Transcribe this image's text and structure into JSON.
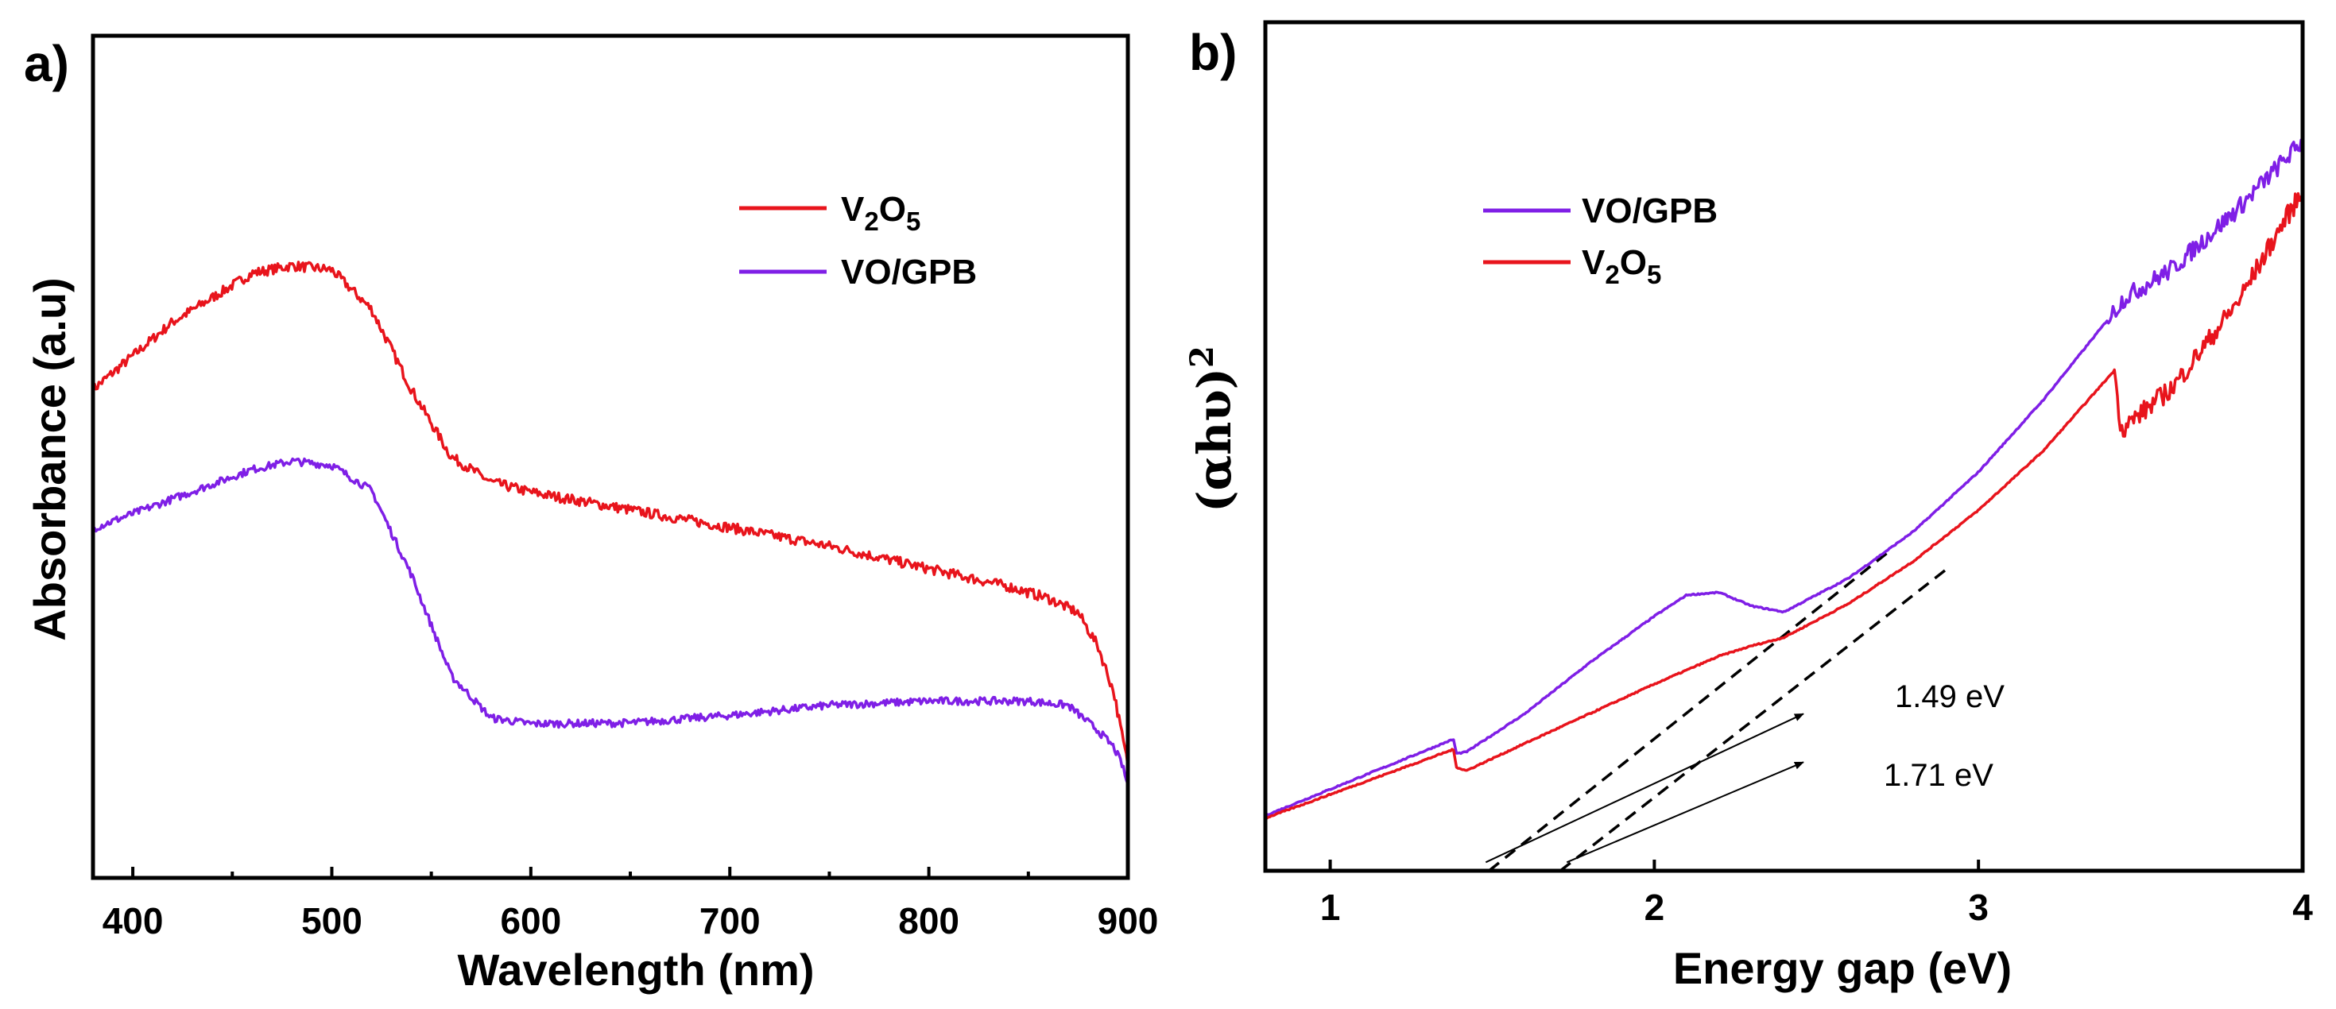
{
  "colors": {
    "red": "#e8141c",
    "purple": "#7f1fe6",
    "axis": "#000000"
  },
  "chart_data": [
    {
      "panel": "a)",
      "type": "line",
      "xlabel": "Wavelength (nm)",
      "ylabel": "Absorbance (a.u)",
      "xlim": [
        380,
        900
      ],
      "ylim": [
        0,
        100
      ],
      "xticks": [
        "400",
        "500",
        "600",
        "700",
        "800",
        "900"
      ],
      "legend": {
        "position": "top-right",
        "entries": [
          {
            "name": "V2O5",
            "base": "V",
            "sub1": "2",
            "mid": "O",
            "sub2": "5",
            "color": "#e8141c"
          },
          {
            "name": "VO/GPB",
            "color": "#7f1fe6"
          }
        ]
      },
      "series": [
        {
          "name": "V2O5",
          "color": "#e8141c",
          "noise": 1.2,
          "x": [
            380,
            420,
            460,
            480,
            500,
            520,
            540,
            560,
            580,
            600,
            650,
            700,
            750,
            800,
            840,
            860,
            875,
            885,
            893,
            897,
            900
          ],
          "y": [
            58,
            66,
            71.8,
            72.7,
            72.2,
            67.5,
            58,
            50,
            47,
            45.8,
            43.7,
            41.6,
            39.4,
            36.7,
            34.6,
            33.2,
            31.5,
            27.5,
            22,
            17,
            13.5
          ]
        },
        {
          "name": "VO/GPB",
          "color": "#7f1fe6",
          "noise": 0.9,
          "x": [
            380,
            420,
            460,
            480,
            500,
            520,
            540,
            560,
            580,
            600,
            650,
            700,
            750,
            800,
            850,
            870,
            885,
            893,
            897,
            900
          ],
          "y": [
            41.5,
            45,
            48.5,
            49.5,
            49,
            46,
            36,
            24,
            19,
            18.3,
            18.4,
            19.3,
            20.5,
            21,
            21,
            20.5,
            17.5,
            15.5,
            13.5,
            11
          ]
        }
      ]
    },
    {
      "panel": "b)",
      "type": "line",
      "xlabel": "Energy gap (eV)",
      "ylabel": "(αhυ)",
      "ylabel_sup": "2",
      "xlim": [
        0.8,
        4.0
      ],
      "ylim": [
        0,
        100
      ],
      "xticks": [
        "1",
        "2",
        "3",
        "4"
      ],
      "legend": {
        "position": "top-left",
        "entries": [
          {
            "name": "VO/GPB",
            "color": "#7f1fe6"
          },
          {
            "name": "V2O5",
            "base": "V",
            "sub1": "2",
            "mid": "O",
            "sub2": "5",
            "color": "#e8141c"
          }
        ]
      },
      "series": [
        {
          "name": "VO/GPB",
          "color": "#7f1fe6",
          "noise": 2.2,
          "noise_from": 3.4,
          "x": [
            0.8,
            1.38,
            1.39,
            1.42,
            1.6,
            1.8,
            2.0,
            2.1,
            2.2,
            2.3,
            2.4,
            2.6,
            2.8,
            3.0,
            3.2,
            3.4,
            3.45,
            3.6,
            3.8,
            3.95,
            4.0
          ],
          "y": [
            6.5,
            15.5,
            13.8,
            14,
            18.5,
            24.5,
            30,
            32.5,
            32.8,
            31.2,
            30.5,
            34.5,
            40,
            47,
            55.5,
            65,
            67.5,
            71,
            78,
            84,
            86
          ]
        },
        {
          "name": "V2O5",
          "color": "#e8141c",
          "noise": 2.4,
          "noise_from": 3.43,
          "x": [
            0.8,
            1.38,
            1.39,
            1.42,
            1.6,
            1.8,
            2.0,
            2.2,
            2.3,
            2.4,
            2.6,
            2.8,
            3.0,
            3.2,
            3.42,
            3.44,
            3.6,
            3.8,
            3.95,
            4.0
          ],
          "y": [
            6.2,
            14.3,
            12.2,
            11.8,
            15,
            18.5,
            22,
            25.3,
            26.5,
            27.5,
            31.5,
            36.5,
            42.5,
            49.5,
            59,
            52,
            57,
            67,
            77,
            80
          ]
        }
      ],
      "fit_lines": [
        {
          "x": [
            1.49,
            2.72
          ],
          "y": [
            0,
            37.5
          ]
        },
        {
          "x": [
            1.71,
            2.9
          ],
          "y": [
            0,
            35.5
          ]
        }
      ],
      "annotations": [
        {
          "text": "1.49 eV",
          "from": [
            1.48,
            1.0
          ],
          "to": [
            2.46,
            18.5
          ]
        },
        {
          "text": "1.71 eV",
          "from": [
            1.73,
            1.0
          ],
          "to": [
            2.46,
            12.8
          ]
        }
      ]
    }
  ]
}
